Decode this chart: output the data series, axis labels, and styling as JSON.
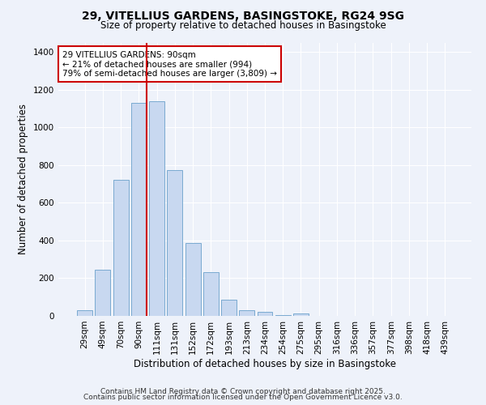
{
  "title_line1": "29, VITELLIUS GARDENS, BASINGSTOKE, RG24 9SG",
  "title_line2": "Size of property relative to detached houses in Basingstoke",
  "xlabel": "Distribution of detached houses by size in Basingstoke",
  "ylabel": "Number of detached properties",
  "bar_labels": [
    "29sqm",
    "49sqm",
    "70sqm",
    "90sqm",
    "111sqm",
    "131sqm",
    "152sqm",
    "172sqm",
    "193sqm",
    "213sqm",
    "234sqm",
    "254sqm",
    "275sqm",
    "295sqm",
    "316sqm",
    "336sqm",
    "357sqm",
    "377sqm",
    "398sqm",
    "418sqm",
    "439sqm"
  ],
  "bar_values": [
    30,
    245,
    720,
    1130,
    1140,
    775,
    385,
    230,
    85,
    30,
    20,
    5,
    15,
    0,
    0,
    0,
    0,
    0,
    0,
    0,
    0
  ],
  "bar_color": "#c8d8f0",
  "bar_edge_color": "#7aaad0",
  "vline_index": 3,
  "vline_color": "#cc0000",
  "annotation_title": "29 VITELLIUS GARDENS: 90sqm",
  "annotation_line1": "← 21% of detached houses are smaller (994)",
  "annotation_line2": "79% of semi-detached houses are larger (3,809) →",
  "annotation_box_color": "#ffffff",
  "annotation_box_edge": "#cc0000",
  "ylim": [
    0,
    1450
  ],
  "yticks": [
    0,
    200,
    400,
    600,
    800,
    1000,
    1200,
    1400
  ],
  "background_color": "#eef2fa",
  "grid_color": "#ffffff",
  "footer_line1": "Contains HM Land Registry data © Crown copyright and database right 2025.",
  "footer_line2": "Contains public sector information licensed under the Open Government Licence v3.0."
}
